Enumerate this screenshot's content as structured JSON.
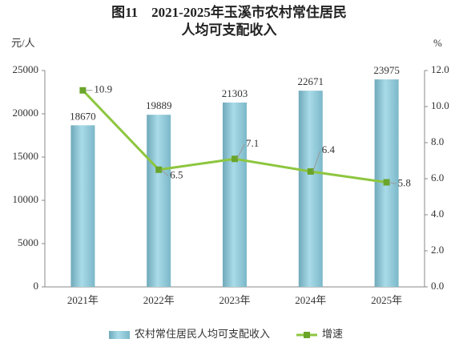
{
  "chart_data": {
    "type": "bar_line",
    "title": [
      "图11　2021-2025年玉溪市农村常住居民",
      "人均可支配收入"
    ],
    "y_unit": "元/人",
    "y2_unit": "%",
    "categories": [
      "2021年",
      "2022年",
      "2023年",
      "2024年",
      "2025年"
    ],
    "series": [
      {
        "name": "农村常住居民人均可支配收入",
        "type": "bar",
        "color": "#8ec9d8",
        "values": [
          18670,
          19889,
          21303,
          22671,
          23975
        ]
      },
      {
        "name": "增速",
        "type": "line",
        "axis": "y2",
        "color": "#8dc63f",
        "values": [
          10.9,
          6.5,
          7.1,
          6.4,
          5.8
        ]
      }
    ],
    "ylim": [
      0,
      25000
    ],
    "yticks": [
      0,
      5000,
      10000,
      15000,
      20000,
      25000
    ],
    "y2lim": [
      0,
      12
    ],
    "y2ticks": [
      {
        "value": 0,
        "label": "0.0"
      },
      {
        "value": 2,
        "label": "2.0"
      },
      {
        "value": 4,
        "label": "4.0"
      },
      {
        "value": 6,
        "label": "6.0"
      },
      {
        "value": 8,
        "label": "8.0"
      },
      {
        "value": 10,
        "label": "10.0"
      },
      {
        "value": 12,
        "label": "12.0"
      }
    ]
  }
}
